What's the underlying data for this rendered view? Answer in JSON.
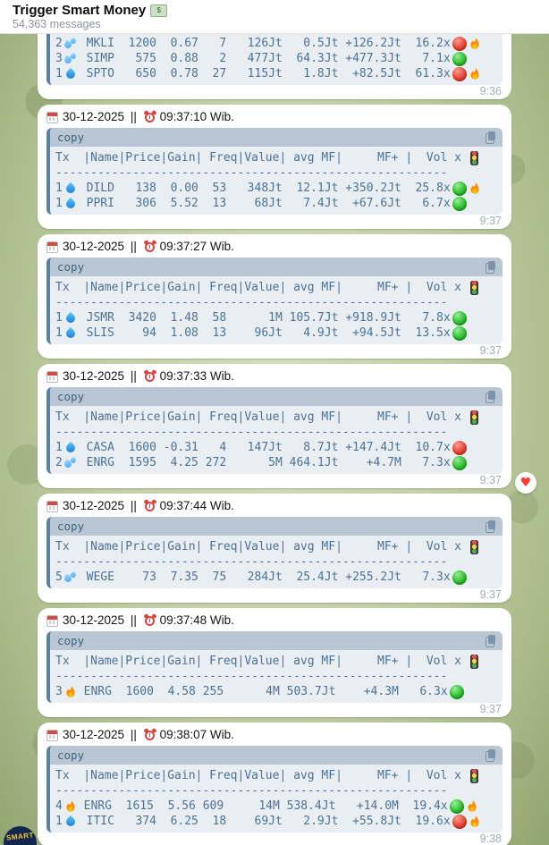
{
  "header": {
    "title": "Trigger Smart Money",
    "title_icon": "dollar-banknote",
    "subtitle": "54,363 messages"
  },
  "table": {
    "copy_label": "copy",
    "header_prefix": "Tx  |Name|Price|Gain| Freq|Value| avg MF|     MF+ |  Vol x ",
    "header_light_icon": "traffic-light",
    "header_suffix": "   |",
    "separator": "--------------------------------------------------------",
    "columns": [
      "Tx",
      "Name",
      "Price",
      "Gain",
      "Freq",
      "Value",
      "avg MF",
      "MF+",
      "Vol x"
    ]
  },
  "messages": [
    {
      "partial": true,
      "time": "9:36",
      "rows": [
        {
          "tx": "2",
          "tx_icon": "sweat-drops",
          "name": "MKLI",
          "price": "1200",
          "gain": "0.67",
          "freq": "7",
          "value": "126Jt",
          "avg_mf": "0.5Jt",
          "mf_plus": "+126.2Jt",
          "vol_x": "16.2x",
          "signal": "red",
          "fire": true
        },
        {
          "tx": "3",
          "tx_icon": "sweat-drops",
          "name": "SIMP",
          "price": "575",
          "gain": "0.88",
          "freq": "2",
          "value": "477Jt",
          "avg_mf": "64.3Jt",
          "mf_plus": "+477.3Jt",
          "vol_x": "7.1x",
          "signal": "green",
          "fire": false
        },
        {
          "tx": "1",
          "tx_icon": "droplet",
          "name": "SPTO",
          "price": "650",
          "gain": "0.78",
          "freq": "27",
          "value": "115Jt",
          "avg_mf": "1.8Jt",
          "mf_plus": "+82.5Jt",
          "vol_x": "61.3x",
          "signal": "red",
          "fire": true
        }
      ]
    },
    {
      "date": "30-12-2025",
      "pipes": " || ",
      "clock": "09:37:10 Wib.",
      "time": "9:37",
      "rows": [
        {
          "tx": "1",
          "tx_icon": "droplet",
          "name": "DILD",
          "price": "138",
          "gain": "0.00",
          "freq": "53",
          "value": "348Jt",
          "avg_mf": "12.1Jt",
          "mf_plus": "+350.2Jt",
          "vol_x": "25.8x",
          "signal": "green",
          "fire": true
        },
        {
          "tx": "1",
          "tx_icon": "droplet",
          "name": "PPRI",
          "price": "306",
          "gain": "5.52",
          "freq": "13",
          "value": "68Jt",
          "avg_mf": "7.4Jt",
          "mf_plus": "+67.6Jt",
          "vol_x": "6.7x",
          "signal": "green",
          "fire": false
        }
      ]
    },
    {
      "date": "30-12-2025",
      "pipes": " || ",
      "clock": "09:37:27 Wib.",
      "time": "9:37",
      "rows": [
        {
          "tx": "1",
          "tx_icon": "droplet",
          "name": "JSMR",
          "price": "3420",
          "gain": "1.48",
          "freq": "58",
          "value": "1M",
          "avg_mf": "105.7Jt",
          "mf_plus": "+918.9Jt",
          "vol_x": "7.8x",
          "signal": "green",
          "fire": false
        },
        {
          "tx": "1",
          "tx_icon": "droplet",
          "name": "SLIS",
          "price": "94",
          "gain": "1.08",
          "freq": "13",
          "value": "96Jt",
          "avg_mf": "4.9Jt",
          "mf_plus": "+94.5Jt",
          "vol_x": "13.5x",
          "signal": "green",
          "fire": false
        }
      ]
    },
    {
      "date": "30-12-2025",
      "pipes": " || ",
      "clock": "09:37:33 Wib.",
      "time": "9:37",
      "reaction": "heart",
      "rows": [
        {
          "tx": "1",
          "tx_icon": "droplet",
          "name": "CASA",
          "price": "1600",
          "gain": "-0.31",
          "freq": "4",
          "value": "147Jt",
          "avg_mf": "8.7Jt",
          "mf_plus": "+147.4Jt",
          "vol_x": "10.7x",
          "signal": "red",
          "fire": false
        },
        {
          "tx": "2",
          "tx_icon": "sweat-drops",
          "name": "ENRG",
          "price": "1595",
          "gain": "4.25",
          "freq": "272",
          "value": "5M",
          "avg_mf": "464.1Jt",
          "mf_plus": "+4.7M",
          "vol_x": "7.3x",
          "signal": "green",
          "fire": false
        }
      ]
    },
    {
      "date": "30-12-2025",
      "pipes": " || ",
      "clock": "09:37:44 Wib.",
      "time": "9:37",
      "rows": [
        {
          "tx": "5",
          "tx_icon": "sweat-drops",
          "name": "WEGE",
          "price": "73",
          "gain": "7.35",
          "freq": "75",
          "value": "284Jt",
          "avg_mf": "25.4Jt",
          "mf_plus": "+255.2Jt",
          "vol_x": "7.3x",
          "signal": "green",
          "fire": false
        }
      ]
    },
    {
      "date": "30-12-2025",
      "pipes": " || ",
      "clock": "09:37:48 Wib.",
      "time": "9:37",
      "rows": [
        {
          "tx": "3",
          "tx_icon": "fire",
          "name": "ENRG",
          "price": "1600",
          "gain": "4.58",
          "freq": "255",
          "value": "4M",
          "avg_mf": "503.7Jt",
          "mf_plus": "+4.3M",
          "vol_x": "6.3x",
          "signal": "green",
          "fire": false
        }
      ]
    },
    {
      "date": "30-12-2025",
      "pipes": " || ",
      "clock": "09:38:07 Wib.",
      "time": "9:38",
      "rows": [
        {
          "tx": "4",
          "tx_icon": "fire",
          "name": "ENRG",
          "price": "1615",
          "gain": "5.56",
          "freq": "609",
          "value": "14M",
          "avg_mf": "538.4Jt",
          "mf_plus": "+14.0M",
          "vol_x": "19.4x",
          "signal": "green",
          "fire": true
        },
        {
          "tx": "1",
          "tx_icon": "droplet",
          "name": "ITIC",
          "price": "374",
          "gain": "6.25",
          "freq": "18",
          "value": "69Jt",
          "avg_mf": "2.9Jt",
          "mf_plus": "+55.8Jt",
          "vol_x": "19.6x",
          "signal": "red",
          "fire": true
        }
      ]
    }
  ],
  "avatar": {
    "label": "SMART"
  },
  "colors": {
    "code_accent": "#5c80a4",
    "code_header_bg": "#b9c7d4",
    "code_body_bg": "#e9eef2",
    "code_text": "#4d7294",
    "signal_green": "#23b523",
    "signal_red": "#df3a2a",
    "background_green": "#c3cfa6",
    "bubble": "#ffffff"
  }
}
